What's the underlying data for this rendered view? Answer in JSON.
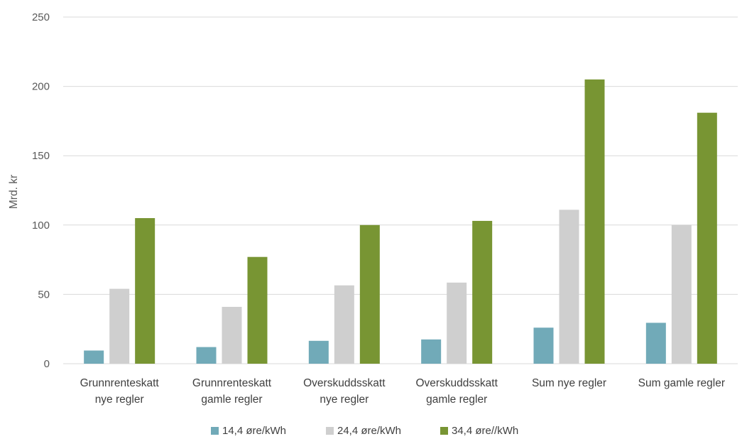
{
  "chart_data": {
    "type": "bar",
    "title": "",
    "ylabel": "Mrd. kr",
    "xlabel": "",
    "ylim": [
      0,
      250
    ],
    "yticks": [
      0,
      50,
      100,
      150,
      200,
      250
    ],
    "grid": true,
    "legend_position": "bottom",
    "categories": [
      [
        "Grunnrenteskatt",
        "nye regler"
      ],
      [
        "Grunnrenteskatt",
        "gamle regler"
      ],
      [
        "Overskuddsskatt",
        "nye regler"
      ],
      [
        "Overskuddsskatt",
        "gamle regler"
      ],
      [
        "Sum nye regler"
      ],
      [
        "Sum gamle regler"
      ]
    ],
    "series": [
      {
        "name": "14,4 øre/kWh",
        "color": "#71aab8",
        "values": [
          9.5,
          12,
          16.5,
          17.5,
          26,
          29.5
        ]
      },
      {
        "name": "24,4 øre/kWh",
        "color": "#cfcfcf",
        "values": [
          54,
          41,
          56.5,
          58.5,
          111,
          100
        ]
      },
      {
        "name": "34,4 øre//kWh",
        "color": "#789533",
        "values": [
          105,
          77,
          100,
          103,
          205,
          181
        ]
      }
    ]
  }
}
